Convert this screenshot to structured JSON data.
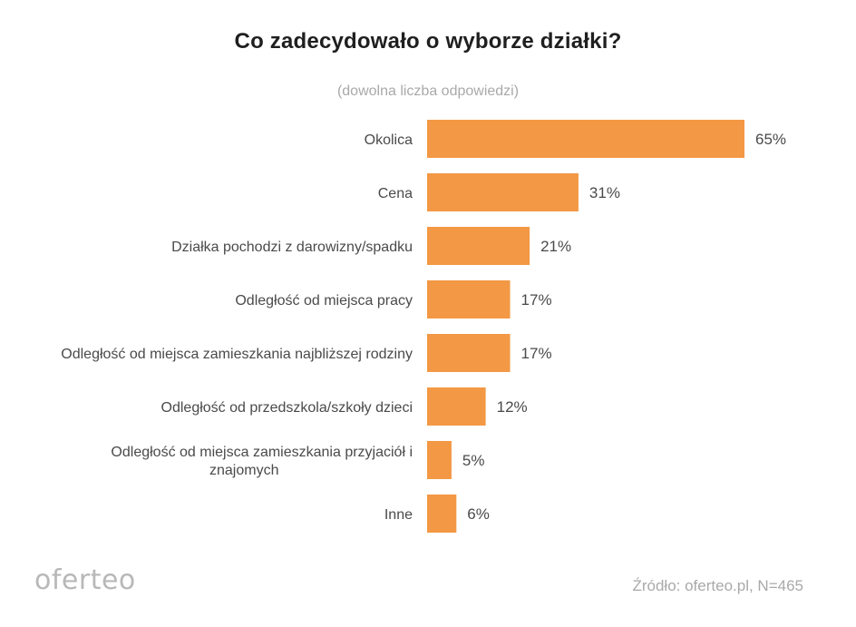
{
  "chart_data": {
    "type": "bar",
    "orientation": "horizontal",
    "title": "Co zadecydowało o wyborze działki?",
    "subtitle": "(dowolna liczba odpowiedzi)",
    "categories": [
      "Okolica",
      "Cena",
      "Działka pochodzi z darowizny/spadku",
      "Odległość od miejsca pracy",
      "Odległość od miejsca zamieszkania najbliższej rodziny",
      "Odległość od przedszkola/szkoły dzieci",
      "Odległość od miejsca zamieszkania przyjaciół i znajomych",
      "Inne"
    ],
    "category_lines": [
      [
        "Okolica"
      ],
      [
        "Cena"
      ],
      [
        "Działka pochodzi z darowizny/spadku"
      ],
      [
        "Odległość od miejsca pracy"
      ],
      [
        "Odległość od miejsca zamieszkania najbliższej rodziny"
      ],
      [
        "Odległość od przedszkola/szkoły dzieci"
      ],
      [
        "Odległość od miejsca zamieszkania przyjaciół i",
        "znajomych"
      ],
      [
        "Inne"
      ]
    ],
    "values": [
      65,
      31,
      21,
      17,
      17,
      12,
      5,
      6
    ],
    "value_labels": [
      "65%",
      "31%",
      "21%",
      "17%",
      "17%",
      "12%",
      "5%",
      "6%"
    ],
    "unit": "%",
    "bar_color": "#F39844",
    "grid": false,
    "legend": "none"
  },
  "footer": {
    "logo": "oferteo",
    "source": "Źródło: oferteo.pl, N=465"
  }
}
